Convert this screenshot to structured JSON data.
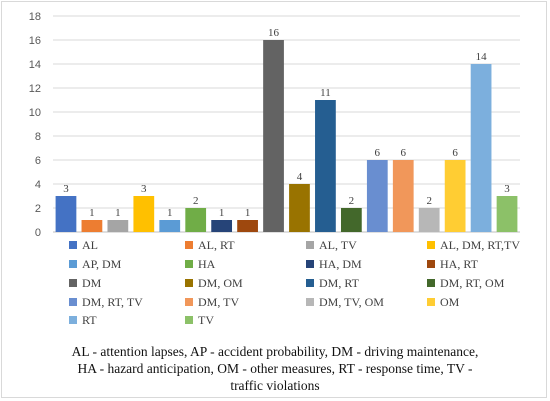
{
  "chart_data": {
    "type": "bar",
    "categories": [
      "AL",
      "AL, RT",
      "AL, TV",
      "AL,  DM, RT,TV",
      "AP, DM",
      "HA",
      "HA, DM",
      "HA, RT",
      "DM",
      "DM, OM",
      "DM, RT",
      "DM, RT, OM",
      "DM, RT, TV",
      "DM, TV",
      "DM, TV, OM",
      "OM",
      "RT",
      "TV"
    ],
    "values": [
      3,
      1,
      1,
      3,
      1,
      2,
      1,
      1,
      16,
      4,
      11,
      2,
      6,
      6,
      2,
      6,
      14,
      3
    ],
    "colors": [
      "#4472C4",
      "#ED7D31",
      "#A5A5A5",
      "#FFC000",
      "#5B9BD5",
      "#70AD47",
      "#264478",
      "#9E480E",
      "#636363",
      "#997300",
      "#255E91",
      "#43682B",
      "#698ED0",
      "#F1975A",
      "#B7B7B7",
      "#FFCD33",
      "#7CAFDD",
      "#8CC168"
    ],
    "ylim": [
      0,
      18
    ],
    "yticks": [
      "0",
      "2",
      "4",
      "6",
      "8",
      "10",
      "12",
      "14",
      "16",
      "18"
    ],
    "grid": true,
    "legend_position": "bottom"
  },
  "caption": {
    "line1": "AL - attention lapses, AP - accident probability, DM - driving maintenance,",
    "line2": "HA - hazard anticipation, OM - other measures, RT - response time, TV -",
    "line3": "traffic violations"
  }
}
